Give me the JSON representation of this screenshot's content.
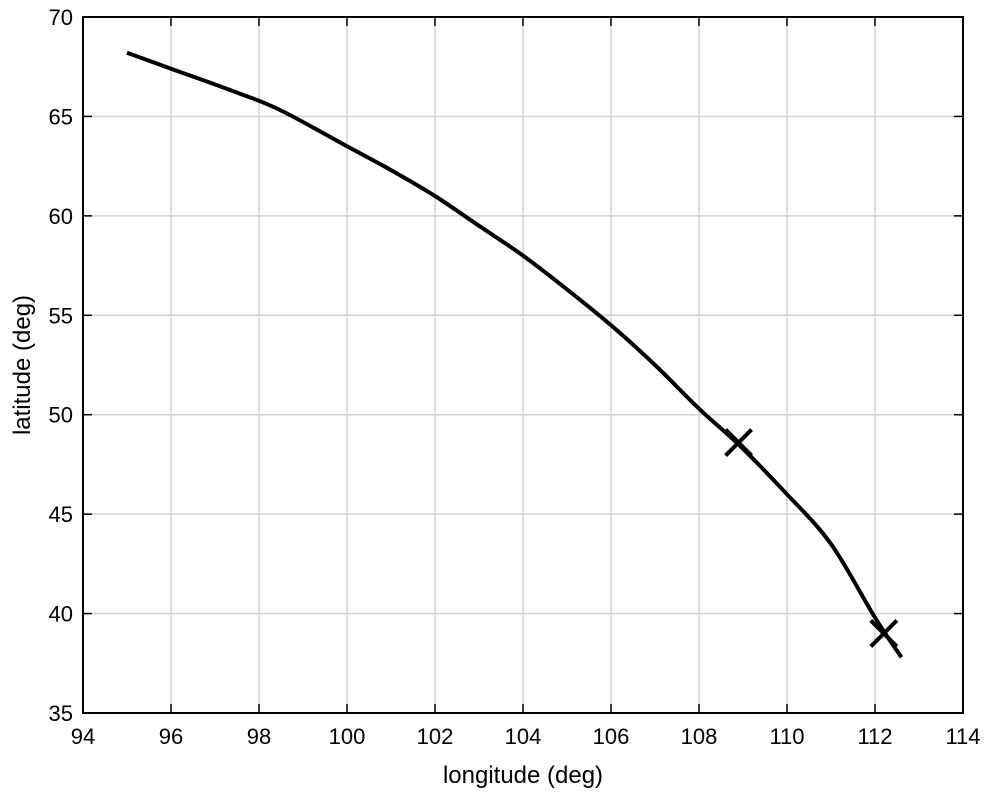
{
  "chart_data": {
    "type": "line",
    "title": "",
    "xlabel": "longitude (deg)",
    "ylabel": "latitude (deg)",
    "xlim": [
      94,
      114
    ],
    "ylim": [
      35,
      70
    ],
    "xticks": [
      94,
      96,
      98,
      100,
      102,
      104,
      106,
      108,
      110,
      112,
      114
    ],
    "yticks": [
      35,
      40,
      45,
      50,
      55,
      60,
      65,
      70
    ],
    "grid": true,
    "series": [
      {
        "color": "#000000",
        "x": [
          95.0,
          96.0,
          97.5,
          98.5,
          100.0,
          101.0,
          102.0,
          103.0,
          104.0,
          105.0,
          106.0,
          107.0,
          108.0,
          108.9,
          110.0,
          111.0,
          112.0,
          112.6
        ],
        "y": [
          68.2,
          67.4,
          66.2,
          65.3,
          63.5,
          62.3,
          61.0,
          59.5,
          58.0,
          56.3,
          54.5,
          52.5,
          50.3,
          48.5,
          46.0,
          43.5,
          39.8,
          37.8
        ]
      }
    ],
    "markers": [
      {
        "shape": "x",
        "x": 108.9,
        "y": 48.6
      },
      {
        "shape": "x",
        "x": 112.2,
        "y": 39.0
      }
    ]
  }
}
